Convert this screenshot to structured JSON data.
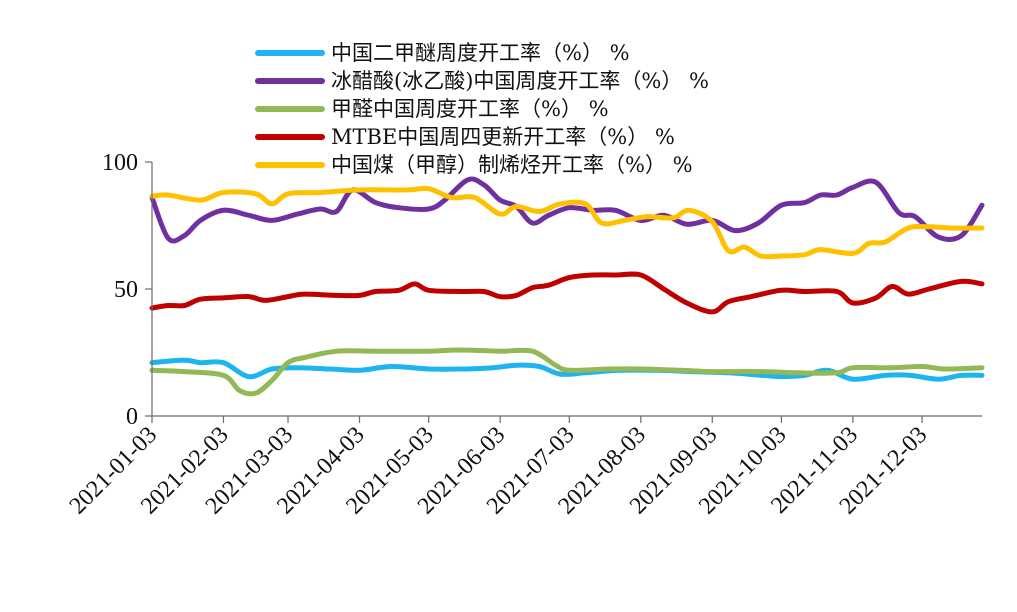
{
  "chart_data": {
    "type": "line",
    "title": "",
    "xlabel": "",
    "ylabel": "",
    "ylim": [
      0,
      100
    ],
    "xlim": [
      "2021-01-03",
      "2021-12-29"
    ],
    "y_ticks": [
      "0",
      "50",
      "100"
    ],
    "x_ticks": [
      "2021-01-03",
      "2021-02-03",
      "2021-03-03",
      "2021-04-03",
      "2021-05-03",
      "2021-06-03",
      "2021-07-03",
      "2021-08-03",
      "2021-09-03",
      "2021-10-03",
      "2021-11-03",
      "2021-12-03"
    ],
    "grid": false,
    "legend_position": "top",
    "series": [
      {
        "name": "中国二甲醚周度开工率（%） %",
        "color": "#1eb4f0",
        "points": [
          [
            "2021-01-03",
            21
          ],
          [
            "2021-01-17",
            22
          ],
          [
            "2021-01-24",
            21
          ],
          [
            "2021-02-03",
            21
          ],
          [
            "2021-02-14",
            15.5
          ],
          [
            "2021-02-24",
            18.5
          ],
          [
            "2021-03-07",
            19
          ],
          [
            "2021-03-21",
            18.5
          ],
          [
            "2021-04-03",
            18
          ],
          [
            "2021-04-17",
            19.5
          ],
          [
            "2021-05-03",
            18.5
          ],
          [
            "2021-05-17",
            18.5
          ],
          [
            "2021-05-31",
            19
          ],
          [
            "2021-06-10",
            20
          ],
          [
            "2021-06-20",
            19.5
          ],
          [
            "2021-06-29",
            16.5
          ],
          [
            "2021-07-10",
            17
          ],
          [
            "2021-07-25",
            18
          ],
          [
            "2021-08-10",
            18
          ],
          [
            "2021-08-25",
            17.5
          ],
          [
            "2021-09-10",
            17
          ],
          [
            "2021-09-25",
            16
          ],
          [
            "2021-10-03",
            15.5
          ],
          [
            "2021-10-13",
            16
          ],
          [
            "2021-10-23",
            18
          ],
          [
            "2021-11-03",
            14.5
          ],
          [
            "2021-11-17",
            16
          ],
          [
            "2021-11-28",
            16
          ],
          [
            "2021-12-10",
            14.5
          ],
          [
            "2021-12-20",
            16
          ],
          [
            "2021-12-29",
            16
          ]
        ]
      },
      {
        "name": "冰醋酸(冰乙酸)中国周度开工率（%） %",
        "color": "#7030a0",
        "points": [
          [
            "2021-01-03",
            86
          ],
          [
            "2021-01-10",
            70
          ],
          [
            "2021-01-17",
            71
          ],
          [
            "2021-01-24",
            77
          ],
          [
            "2021-02-03",
            81
          ],
          [
            "2021-02-14",
            79
          ],
          [
            "2021-02-24",
            77
          ],
          [
            "2021-03-07",
            79.5
          ],
          [
            "2021-03-17",
            81.5
          ],
          [
            "2021-03-24",
            80.5
          ],
          [
            "2021-03-31",
            89
          ],
          [
            "2021-04-10",
            84
          ],
          [
            "2021-04-20",
            82
          ],
          [
            "2021-05-03",
            81.5
          ],
          [
            "2021-05-10",
            85
          ],
          [
            "2021-05-20",
            93
          ],
          [
            "2021-05-27",
            91
          ],
          [
            "2021-06-03",
            85
          ],
          [
            "2021-06-10",
            82.5
          ],
          [
            "2021-06-17",
            76
          ],
          [
            "2021-06-24",
            79
          ],
          [
            "2021-07-03",
            82
          ],
          [
            "2021-07-13",
            81
          ],
          [
            "2021-07-23",
            81
          ],
          [
            "2021-08-03",
            77
          ],
          [
            "2021-08-13",
            79
          ],
          [
            "2021-08-23",
            75.5
          ],
          [
            "2021-09-03",
            77
          ],
          [
            "2021-09-13",
            73
          ],
          [
            "2021-09-23",
            76
          ],
          [
            "2021-10-03",
            83
          ],
          [
            "2021-10-13",
            84
          ],
          [
            "2021-10-20",
            87
          ],
          [
            "2021-10-27",
            87
          ],
          [
            "2021-11-03",
            90
          ],
          [
            "2021-11-13",
            92
          ],
          [
            "2021-11-23",
            80
          ],
          [
            "2021-11-30",
            78.5
          ],
          [
            "2021-12-10",
            70.5
          ],
          [
            "2021-12-20",
            71
          ],
          [
            "2021-12-29",
            83
          ]
        ]
      },
      {
        "name": "甲醛中国周度开工率（%） %",
        "color": "#92b955",
        "points": [
          [
            "2021-01-03",
            18
          ],
          [
            "2021-01-17",
            17.5
          ],
          [
            "2021-02-03",
            16
          ],
          [
            "2021-02-10",
            10
          ],
          [
            "2021-02-17",
            9
          ],
          [
            "2021-02-24",
            14
          ],
          [
            "2021-03-03",
            21
          ],
          [
            "2021-03-10",
            23
          ],
          [
            "2021-03-24",
            25.5
          ],
          [
            "2021-04-10",
            25.5
          ],
          [
            "2021-04-24",
            25.5
          ],
          [
            "2021-05-03",
            25.5
          ],
          [
            "2021-05-17",
            26
          ],
          [
            "2021-06-03",
            25.5
          ],
          [
            "2021-06-17",
            25.5
          ],
          [
            "2021-06-27",
            20
          ],
          [
            "2021-07-03",
            18
          ],
          [
            "2021-07-20",
            18.5
          ],
          [
            "2021-08-03",
            18.5
          ],
          [
            "2021-08-20",
            18
          ],
          [
            "2021-09-03",
            17.5
          ],
          [
            "2021-09-25",
            17.5
          ],
          [
            "2021-10-10",
            17
          ],
          [
            "2021-10-27",
            17
          ],
          [
            "2021-11-03",
            19
          ],
          [
            "2021-11-20",
            19
          ],
          [
            "2021-12-03",
            19.5
          ],
          [
            "2021-12-13",
            18.5
          ],
          [
            "2021-12-29",
            19
          ]
        ]
      },
      {
        "name": "MTBE中国周四更新开工率（%） %",
        "color": "#c00000",
        "points": [
          [
            "2021-01-03",
            42.5
          ],
          [
            "2021-01-10",
            43.5
          ],
          [
            "2021-01-17",
            43.5
          ],
          [
            "2021-01-24",
            46
          ],
          [
            "2021-02-03",
            46.5
          ],
          [
            "2021-02-14",
            47
          ],
          [
            "2021-02-21",
            45.5
          ],
          [
            "2021-03-03",
            47
          ],
          [
            "2021-03-10",
            48
          ],
          [
            "2021-03-24",
            47.5
          ],
          [
            "2021-04-03",
            47.5
          ],
          [
            "2021-04-10",
            49
          ],
          [
            "2021-04-20",
            49.5
          ],
          [
            "2021-04-27",
            52
          ],
          [
            "2021-05-03",
            49.5
          ],
          [
            "2021-05-17",
            49
          ],
          [
            "2021-05-27",
            49
          ],
          [
            "2021-06-03",
            47
          ],
          [
            "2021-06-10",
            47.5
          ],
          [
            "2021-06-17",
            50.5
          ],
          [
            "2021-06-24",
            51.5
          ],
          [
            "2021-07-03",
            54.5
          ],
          [
            "2021-07-13",
            55.5
          ],
          [
            "2021-07-23",
            55.5
          ],
          [
            "2021-08-03",
            55.5
          ],
          [
            "2021-08-13",
            50
          ],
          [
            "2021-08-23",
            44.5
          ],
          [
            "2021-09-03",
            41
          ],
          [
            "2021-09-10",
            45
          ],
          [
            "2021-09-20",
            47
          ],
          [
            "2021-10-03",
            49.5
          ],
          [
            "2021-10-13",
            49
          ],
          [
            "2021-10-27",
            49
          ],
          [
            "2021-11-03",
            44.5
          ],
          [
            "2021-11-13",
            46.5
          ],
          [
            "2021-11-20",
            51
          ],
          [
            "2021-11-27",
            48
          ],
          [
            "2021-12-06",
            50
          ],
          [
            "2021-12-20",
            53
          ],
          [
            "2021-12-29",
            52
          ]
        ]
      },
      {
        "name": "中国煤（甲醇）制烯烃开工率（%） %",
        "color": "#ffc000",
        "points": [
          [
            "2021-01-03",
            86.5
          ],
          [
            "2021-01-10",
            87
          ],
          [
            "2021-01-24",
            85
          ],
          [
            "2021-02-03",
            88
          ],
          [
            "2021-02-17",
            87.5
          ],
          [
            "2021-02-24",
            83.5
          ],
          [
            "2021-03-03",
            87.5
          ],
          [
            "2021-03-17",
            88
          ],
          [
            "2021-04-03",
            89
          ],
          [
            "2021-04-24",
            89
          ],
          [
            "2021-05-03",
            89.5
          ],
          [
            "2021-05-13",
            86
          ],
          [
            "2021-05-23",
            86
          ],
          [
            "2021-06-03",
            79.5
          ],
          [
            "2021-06-10",
            82.5
          ],
          [
            "2021-06-20",
            80.5
          ],
          [
            "2021-06-29",
            83.5
          ],
          [
            "2021-07-10",
            83.5
          ],
          [
            "2021-07-17",
            76
          ],
          [
            "2021-07-27",
            77
          ],
          [
            "2021-08-06",
            78.5
          ],
          [
            "2021-08-17",
            78
          ],
          [
            "2021-08-24",
            81
          ],
          [
            "2021-09-03",
            76.5
          ],
          [
            "2021-09-10",
            65
          ],
          [
            "2021-09-17",
            66.5
          ],
          [
            "2021-09-24",
            63
          ],
          [
            "2021-10-03",
            63
          ],
          [
            "2021-10-13",
            63.5
          ],
          [
            "2021-10-20",
            65.5
          ],
          [
            "2021-11-03",
            64
          ],
          [
            "2021-11-10",
            68
          ],
          [
            "2021-11-17",
            68.5
          ],
          [
            "2021-11-27",
            74
          ],
          [
            "2021-12-06",
            74.5
          ],
          [
            "2021-12-16",
            74
          ],
          [
            "2021-12-29",
            74
          ]
        ]
      }
    ]
  }
}
